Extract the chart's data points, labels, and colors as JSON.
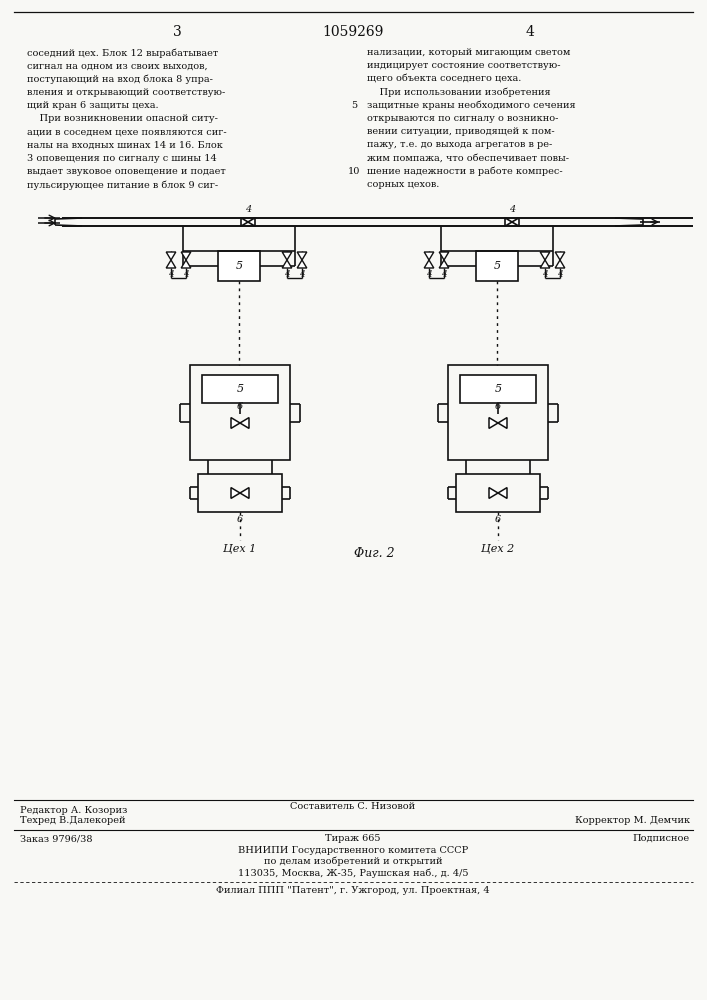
{
  "page_color": "#f8f8f5",
  "text_color": "#111111",
  "header": {
    "left_num": "3",
    "center_num": "1059269",
    "right_num": "4"
  },
  "left_col_text": [
    "соседний цех. Блок 12 вырабатывает",
    "сигнал на одном из своих выходов,",
    "поступающий на вход блока 8 упра-",
    "вления и открывающий соответствую-",
    "щий кран 6 защиты цеха.",
    "    При возникновении опасной ситу-",
    "ации в соседнем цехе появляются сиг-",
    "налы на входных шинах 14 и 16. Блок",
    "3 оповещения по сигналу с шины 14",
    "выдает звуковое оповещение и подает",
    "пульсирующее питание в блок 9 сиг-"
  ],
  "right_col_text_with_nums": [
    {
      "text": "нализации, который мигающим светом",
      "linenum": null
    },
    {
      "text": "индицирует состояние соответствую-",
      "linenum": null
    },
    {
      "text": "щего объекта соседнего цеха.",
      "linenum": null
    },
    {
      "text": "    При использовании изобретения",
      "linenum": null
    },
    {
      "text": "защитные краны необходимого сечения",
      "linenum": "5"
    },
    {
      "text": "открываются по сигналу о возникно-",
      "linenum": null
    },
    {
      "text": "вении ситуации, приводящей к пом-",
      "linenum": null
    },
    {
      "text": "пажу, т.е. до выхода агрегатов в ре-",
      "linenum": null
    },
    {
      "text": "жим помпажа, что обеспечивает повы-",
      "linenum": null
    },
    {
      "text": "шение надежности в работе компрес-",
      "linenum": "10"
    },
    {
      "text": "сорных цехов.",
      "linenum": null
    }
  ],
  "fig_label": "Φиг. 2",
  "cex1_label": "Цех 1",
  "cex2_label": "Цех 2",
  "bottom_section": {
    "editor": "Редактор А. Козориз",
    "composer": "Составитель С. Низовой",
    "techred": "Техред В.Далекорей",
    "corrector": "Корректор М. Демчик",
    "order": "Заказ 9796/38",
    "tirazh": "Тираж 665",
    "podpisnoe": "Подписное",
    "vniipи": "ВНИИПИ Государственного комитета СССР",
    "po_delam": "по делам изобретений и открытий",
    "address": "113035, Москва, Ж-35, Раушская наб., д. 4/5",
    "filial": "Филиал ППП \"Патент\", г. Ужгород, ул. Проектная, 4"
  }
}
